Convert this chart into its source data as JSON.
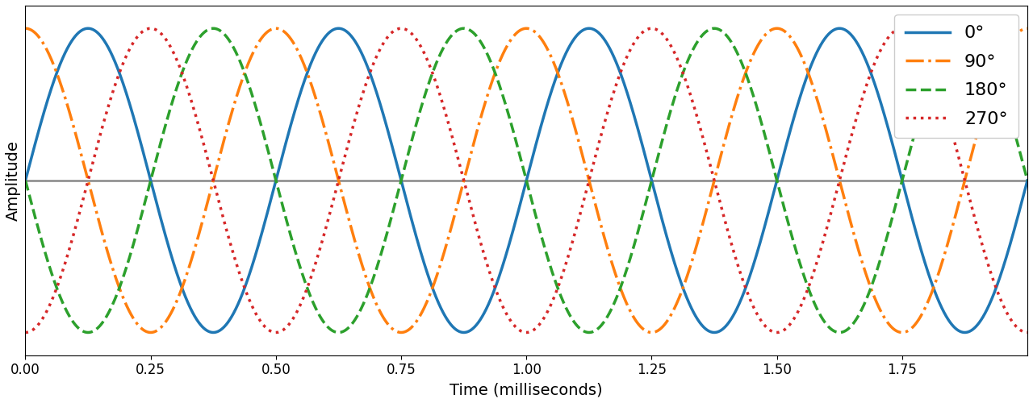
{
  "title": "",
  "xlabel": "Time (milliseconds)",
  "ylabel": "Amplitude",
  "xlim": [
    0,
    2.0
  ],
  "ylim": [
    -1.15,
    1.15
  ],
  "xticks": [
    0.0,
    0.25,
    0.5,
    0.75,
    1.0,
    1.25,
    1.5,
    1.75
  ],
  "frequency_hz": 2000,
  "phases_deg": [
    0,
    90,
    180,
    270
  ],
  "labels": [
    "0°",
    "90°",
    "180°",
    "270°"
  ],
  "colors": [
    "#1f77b4",
    "#ff7f0e",
    "#2ca02c",
    "#d62728"
  ],
  "linestyles": [
    "-",
    "-.",
    "--",
    ":"
  ],
  "linewidths": [
    2.5,
    2.5,
    2.5,
    2.5
  ],
  "hline_color": "#888888",
  "hline_linewidth": 1.8,
  "legend_fontsize": 16,
  "label_fontsize": 14,
  "tick_fontsize": 12,
  "background_color": "#ffffff",
  "figsize": [
    12.8,
    5.0
  ],
  "dpi": 100
}
